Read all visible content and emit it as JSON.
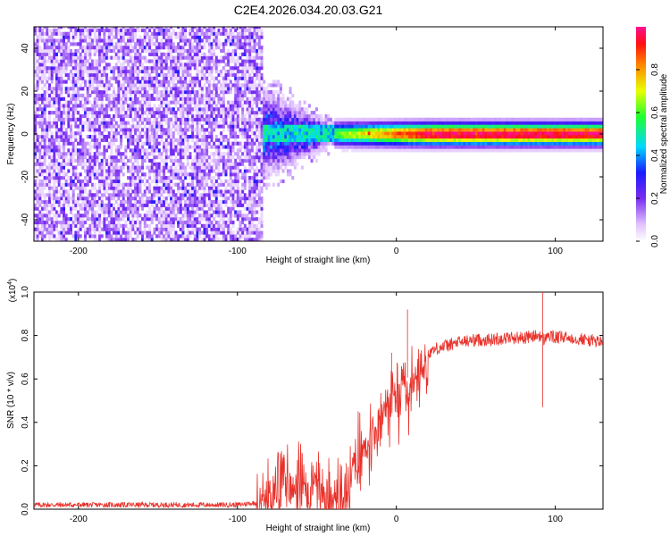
{
  "title": "C2E4.2026.034.20.03.G21",
  "colors": {
    "spectrum_line": "#e8312a",
    "axis": "#000000"
  },
  "chart_data": [
    {
      "type": "heatmap",
      "xlabel": "Height of straight line (km)",
      "ylabel": "Frequency (Hz)",
      "xlim": [
        -228,
        130
      ],
      "ylim": [
        -50,
        50
      ],
      "x_ticks": [
        -200,
        -100,
        0,
        100
      ],
      "y_ticks": [
        -40,
        -20,
        0,
        20,
        40
      ],
      "colorbar": {
        "label": "Normalized spectral amplitude",
        "range": [
          0.0,
          1.0
        ],
        "ticks": [
          "0.0",
          "0.2",
          "0.4",
          "0.6",
          "0.8"
        ],
        "colormap": "rainbow"
      },
      "noise_region_x": [
        -228,
        -85
      ],
      "signal_band_center_hz": 0,
      "signal_onset_x": -85
    },
    {
      "type": "line",
      "xlabel": "Height of straight line (km)",
      "ylabel": "SNR (10 * v/v)",
      "y_multiplier_label": "(x10",
      "y_multiplier_exp": "4",
      "xlim": [
        -228,
        130
      ],
      "ylim": [
        0.0,
        1.0
      ],
      "x_ticks": [
        -200,
        -100,
        0,
        100
      ],
      "y_ticks": [
        "0.0",
        "0.2",
        "0.4",
        "0.6",
        "0.8",
        "1.0"
      ],
      "series": [
        {
          "color": "#e8312a",
          "x": [
            -228,
            -200,
            -150,
            -100,
            -88,
            -85,
            -80,
            -75,
            -70,
            -65,
            -60,
            -55,
            -50,
            -45,
            -40,
            -35,
            -30,
            -28,
            -25,
            -22,
            -20,
            -18,
            -15,
            -12,
            -10,
            -8,
            -5,
            -3,
            0,
            3,
            5,
            8,
            10,
            12,
            15,
            20,
            25,
            30,
            35,
            40,
            50,
            60,
            70,
            80,
            90,
            93,
            95,
            100,
            110,
            120,
            130
          ],
          "values": [
            0.02,
            0.02,
            0.02,
            0.02,
            0.03,
            0.1,
            0.15,
            0.1,
            0.2,
            0.12,
            0.18,
            0.12,
            0.14,
            0.1,
            0.08,
            0.1,
            0.12,
            0.2,
            0.3,
            0.28,
            0.34,
            0.32,
            0.38,
            0.4,
            0.45,
            0.5,
            0.52,
            0.55,
            0.55,
            0.58,
            0.62,
            0.6,
            0.66,
            0.65,
            0.68,
            0.72,
            0.74,
            0.75,
            0.76,
            0.77,
            0.78,
            0.78,
            0.79,
            0.79,
            0.8,
            0.78,
            0.8,
            0.79,
            0.79,
            0.78,
            0.77
          ]
        }
      ],
      "spikes": [
        {
          "x": -3,
          "y": 0.72
        },
        {
          "x": 7,
          "y": 0.92
        },
        {
          "x": 92,
          "y": 1.0
        },
        {
          "x": 92,
          "y": 0.47
        }
      ]
    }
  ]
}
